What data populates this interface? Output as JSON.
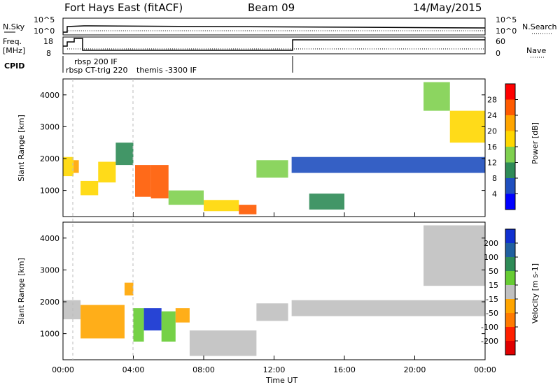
{
  "header": {
    "station": "Fort Hays East (fitACF)",
    "beam": "Beam 09",
    "date": "14/May/2015"
  },
  "strip_panels": {
    "nsky_label": "N.Sky",
    "nsearch_label": "N.Search",
    "count_ticks": [
      "10^5",
      "10^0"
    ],
    "freq_label_line1": "Freq.",
    "freq_label_line2": "[MHz]",
    "freq_ticks": [
      "18",
      "8"
    ],
    "nave_label": "Nave",
    "nave_ticks": [
      "60",
      "0"
    ],
    "cpid_label": "CPID",
    "cpid_modes": [
      "rbsp 200 IF",
      "rbsp CT-trig 220",
      "themis -3300 IF"
    ]
  },
  "axes": {
    "ylabel": "Slant Range [km]",
    "y_ticks": [
      "1000",
      "2000",
      "3000",
      "4000"
    ],
    "x_ticks": [
      "00:00",
      "04:00",
      "08:00",
      "12:00",
      "16:00",
      "20:00",
      "00:00"
    ],
    "xlabel": "Time UT"
  },
  "power_colorbar": {
    "label": "Power [dB]",
    "ticks": [
      "4",
      "8",
      "12",
      "16",
      "20",
      "24",
      "28"
    ],
    "colors": [
      "#0000ff",
      "#1f4fbf",
      "#2e8b57",
      "#7fd04f",
      "#ffd700",
      "#ffa500",
      "#ff5a00",
      "#ff0000"
    ]
  },
  "velocity_colorbar": {
    "label": "Velocity [m s-1]",
    "ticks": [
      "200",
      "100",
      "50",
      "15",
      "-15",
      "-50",
      "-100",
      "-200"
    ],
    "colors": [
      "#1030d0",
      "#2060a0",
      "#2e8b57",
      "#66cc33",
      "#c0c0c0",
      "#ffa500",
      "#ff7a00",
      "#ff2000",
      "#e00000"
    ]
  },
  "chart_data": [
    {
      "type": "heatmap",
      "name": "Power",
      "x_range_hours": [
        0,
        24
      ],
      "ylim": [
        180,
        4500
      ],
      "colorbar_range": [
        0,
        30
      ],
      "regions": [
        {
          "t0": 0.0,
          "t1": 0.6,
          "r0": 1450,
          "r1": 2050,
          "value": 18
        },
        {
          "t0": 0.6,
          "t1": 0.9,
          "r0": 1550,
          "r1": 1950,
          "value": 20
        },
        {
          "t0": 1.0,
          "t1": 2.0,
          "r0": 850,
          "r1": 1300,
          "value": 18
        },
        {
          "t0": 2.0,
          "t1": 3.0,
          "r0": 1250,
          "r1": 1900,
          "value": 16
        },
        {
          "t0": 3.0,
          "t1": 4.0,
          "r0": 1800,
          "r1": 2500,
          "value": 10
        },
        {
          "t0": 4.1,
          "t1": 5.0,
          "r0": 800,
          "r1": 1800,
          "value": 24
        },
        {
          "t0": 5.0,
          "t1": 6.0,
          "r0": 750,
          "r1": 1800,
          "value": 26
        },
        {
          "t0": 6.0,
          "t1": 8.0,
          "r0": 550,
          "r1": 1000,
          "value": 14
        },
        {
          "t0": 8.0,
          "t1": 10.0,
          "r0": 350,
          "r1": 700,
          "value": 18
        },
        {
          "t0": 10.0,
          "t1": 11.0,
          "r0": 250,
          "r1": 550,
          "value": 24
        },
        {
          "t0": 11.0,
          "t1": 12.8,
          "r0": 1400,
          "r1": 1950,
          "value": 14
        },
        {
          "t0": 13.0,
          "t1": 24.0,
          "r0": 1550,
          "r1": 2050,
          "value": 6
        },
        {
          "t0": 14.0,
          "t1": 16.0,
          "r0": 400,
          "r1": 900,
          "value": 8
        },
        {
          "t0": 20.5,
          "t1": 22.0,
          "r0": 3500,
          "r1": 4400,
          "value": 12
        },
        {
          "t0": 22.0,
          "t1": 24.0,
          "r0": 2500,
          "r1": 3500,
          "value": 16
        }
      ]
    },
    {
      "type": "heatmap",
      "name": "Velocity",
      "x_range_hours": [
        0,
        24
      ],
      "ylim": [
        180,
        4500
      ],
      "colorbar_range": [
        -200,
        200
      ],
      "regions": [
        {
          "t0": 0.0,
          "t1": 1.0,
          "r0": 1450,
          "r1": 2050,
          "value": 0
        },
        {
          "t0": 1.0,
          "t1": 3.5,
          "r0": 850,
          "r1": 1900,
          "value": -30
        },
        {
          "t0": 3.5,
          "t1": 4.0,
          "r0": 2200,
          "r1": 2600,
          "value": -40
        },
        {
          "t0": 4.0,
          "t1": 4.6,
          "r0": 750,
          "r1": 1800,
          "value": 60
        },
        {
          "t0": 4.6,
          "t1": 5.6,
          "r0": 1100,
          "r1": 1800,
          "value": 180
        },
        {
          "t0": 5.6,
          "t1": 6.4,
          "r0": 750,
          "r1": 1700,
          "value": 60
        },
        {
          "t0": 6.4,
          "t1": 7.2,
          "r0": 1350,
          "r1": 1800,
          "value": -60
        },
        {
          "t0": 7.2,
          "t1": 11.0,
          "r0": 300,
          "r1": 1100,
          "value": 0
        },
        {
          "t0": 11.0,
          "t1": 12.8,
          "r0": 1400,
          "r1": 1950,
          "value": 20
        },
        {
          "t0": 13.0,
          "t1": 24.0,
          "r0": 1550,
          "r1": 2050,
          "value": 0
        },
        {
          "t0": 20.5,
          "t1": 24.0,
          "r0": 2500,
          "r1": 4400,
          "value": 0
        }
      ]
    },
    {
      "type": "line",
      "name": "N.Sky / N.Search",
      "x": [
        0,
        0.5,
        1,
        2,
        4,
        8,
        12,
        16,
        20,
        24
      ],
      "y": [
        1,
        100000,
        100000,
        100000,
        100000,
        100000,
        100000,
        100000,
        100000,
        100000
      ],
      "ylim": [
        1,
        100000
      ],
      "yscale": "log"
    },
    {
      "type": "line",
      "name": "Freq",
      "x": [
        0,
        0.3,
        0.3,
        1.0,
        1.0,
        13.0,
        13.0,
        24
      ],
      "y": [
        12,
        12,
        15,
        15,
        10,
        10,
        18,
        18
      ],
      "ylim": [
        8,
        18
      ]
    }
  ]
}
